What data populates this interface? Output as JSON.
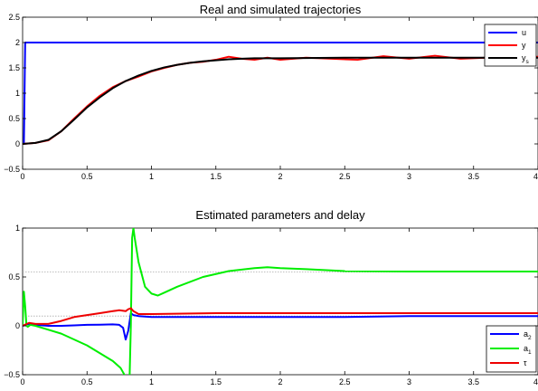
{
  "chart_data": [
    {
      "type": "line",
      "title": "Real and simulated trajectories",
      "xlabel": "",
      "ylabel": "",
      "xlim": [
        0,
        4
      ],
      "ylim": [
        -0.5,
        2.5
      ],
      "x_ticks": [
        0,
        0.5,
        1,
        1.5,
        2,
        2.5,
        3,
        3.5,
        4
      ],
      "x_tick_labels": [
        "0",
        "0.5",
        "1",
        "1.5",
        "2",
        "2.5",
        "3",
        "3.5",
        "4"
      ],
      "y_ticks": [
        -0.5,
        0,
        0.5,
        1,
        1.5,
        2,
        2.5
      ],
      "y_tick_labels": [
        "−0.5",
        "0",
        "0.5",
        "1",
        "1.5",
        "2",
        "2.5"
      ],
      "legend_position": "top-right",
      "series": [
        {
          "name": "u",
          "color": "#0000ff",
          "x": [
            0,
            0.01,
            0.02,
            0.03,
            4
          ],
          "y": [
            0,
            0,
            2.0,
            2.0,
            2.0
          ]
        },
        {
          "name": "y",
          "color": "#ff0000",
          "x": [
            0,
            0.1,
            0.2,
            0.3,
            0.4,
            0.5,
            0.6,
            0.7,
            0.8,
            0.9,
            1.0,
            1.1,
            1.2,
            1.3,
            1.4,
            1.5,
            1.6,
            1.7,
            1.8,
            1.9,
            2.0,
            2.2,
            2.4,
            2.6,
            2.8,
            3.0,
            3.2,
            3.4,
            3.6,
            3.8,
            4.0
          ],
          "y": [
            0,
            0.02,
            0.07,
            0.25,
            0.5,
            0.74,
            0.95,
            1.12,
            1.24,
            1.33,
            1.43,
            1.5,
            1.56,
            1.6,
            1.62,
            1.66,
            1.72,
            1.68,
            1.66,
            1.7,
            1.66,
            1.7,
            1.68,
            1.66,
            1.73,
            1.68,
            1.74,
            1.68,
            1.7,
            1.66,
            1.72
          ]
        },
        {
          "name": "y_s",
          "color": "#000000",
          "x": [
            0,
            0.1,
            0.2,
            0.3,
            0.4,
            0.5,
            0.6,
            0.7,
            0.8,
            0.9,
            1.0,
            1.1,
            1.2,
            1.3,
            1.4,
            1.5,
            1.6,
            1.7,
            1.8,
            2.0,
            2.5,
            3.0,
            3.5,
            4.0
          ],
          "y": [
            0,
            0.02,
            0.08,
            0.25,
            0.48,
            0.72,
            0.92,
            1.1,
            1.24,
            1.35,
            1.44,
            1.51,
            1.56,
            1.6,
            1.63,
            1.65,
            1.67,
            1.68,
            1.69,
            1.69,
            1.7,
            1.7,
            1.7,
            1.7
          ]
        }
      ]
    },
    {
      "type": "line",
      "title": "Estimated parameters and delay",
      "xlabel": "",
      "ylabel": "",
      "xlim": [
        0,
        4
      ],
      "ylim": [
        -0.5,
        1
      ],
      "x_ticks": [
        0,
        0.5,
        1,
        1.5,
        2,
        2.5,
        3,
        3.5,
        4
      ],
      "x_tick_labels": [
        "0",
        "0.5",
        "1",
        "1.5",
        "2",
        "2.5",
        "3",
        "3.5",
        "4"
      ],
      "y_ticks": [
        -0.5,
        0,
        0.5,
        1
      ],
      "y_tick_labels": [
        "−0.5",
        "0",
        "0.5",
        "1"
      ],
      "reference_lines": [
        0.55,
        0.1
      ],
      "legend_position": "bottom-right",
      "series": [
        {
          "name": "a_2",
          "color": "#0000ff",
          "x": [
            0,
            0.05,
            0.1,
            0.2,
            0.3,
            0.4,
            0.5,
            0.6,
            0.7,
            0.75,
            0.78,
            0.8,
            0.82,
            0.84,
            0.86,
            0.9,
            1.0,
            1.2,
            1.5,
            2.0,
            2.5,
            3.0,
            3.5,
            4.0
          ],
          "y": [
            0,
            0.02,
            0.01,
            0.0,
            0.0,
            0.005,
            0.01,
            0.012,
            0.015,
            0.01,
            -0.02,
            -0.14,
            -0.05,
            0.13,
            0.11,
            0.1,
            0.09,
            0.09,
            0.09,
            0.09,
            0.09,
            0.1,
            0.1,
            0.1
          ]
        },
        {
          "name": "a_1",
          "color": "#00ee00",
          "x": [
            0,
            0.01,
            0.02,
            0.03,
            0.04,
            0.06,
            0.1,
            0.2,
            0.3,
            0.4,
            0.5,
            0.6,
            0.7,
            0.76,
            0.79,
            0.81,
            0.83,
            0.84,
            0.85,
            0.86,
            0.87,
            0.9,
            0.95,
            1.0,
            1.05,
            1.1,
            1.2,
            1.4,
            1.6,
            1.8,
            1.9,
            2.0,
            2.2,
            2.5,
            3.0,
            3.5,
            4.0
          ],
          "y": [
            0,
            0.35,
            0.2,
            0.0,
            -0.01,
            0.01,
            0.0,
            -0.04,
            -0.08,
            -0.14,
            -0.2,
            -0.28,
            -0.36,
            -0.43,
            -0.5,
            -0.62,
            -0.55,
            0.0,
            0.9,
            1.0,
            0.9,
            0.65,
            0.4,
            0.33,
            0.31,
            0.34,
            0.4,
            0.5,
            0.56,
            0.59,
            0.6,
            0.59,
            0.58,
            0.56,
            0.555,
            0.555,
            0.555
          ]
        },
        {
          "name": "τ",
          "color": "#ee0000",
          "x": [
            0,
            0.05,
            0.1,
            0.2,
            0.3,
            0.4,
            0.5,
            0.6,
            0.7,
            0.75,
            0.8,
            0.82,
            0.84,
            0.86,
            0.9,
            1.0,
            1.5,
            2.0,
            2.5,
            3.0,
            3.5,
            4.0
          ],
          "y": [
            0,
            0.03,
            0.02,
            0.02,
            0.05,
            0.09,
            0.11,
            0.13,
            0.15,
            0.16,
            0.15,
            0.17,
            0.18,
            0.15,
            0.12,
            0.12,
            0.13,
            0.13,
            0.13,
            0.13,
            0.13,
            0.13
          ]
        }
      ]
    }
  ]
}
